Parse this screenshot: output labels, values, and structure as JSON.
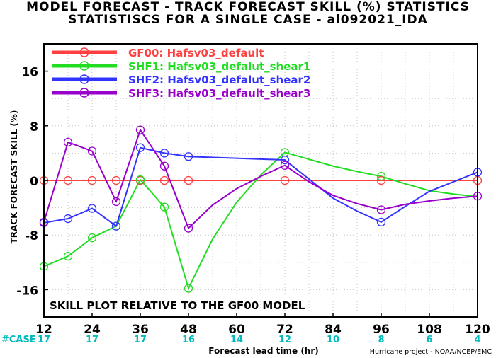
{
  "title_line1": "MODEL FORECAST - TRACK FORECAST SKILL (%) STATISTICS",
  "title_line2": "STATISTISCS FOR A SINGLE CASE - al092021_IDA",
  "annotation": "SKILL PLOT RELATIVE TO THE GF00 MODEL",
  "case_label": "#CASE",
  "credit": "Hurricane project - NOAA/NCEP/EMC",
  "colors": {
    "GF00": "#ff4040",
    "SHF1": "#22dd22",
    "SHF2": "#3333ff",
    "SHF3": "#9900cc",
    "case_counts": "#00bbbb",
    "zero_line": "#8b0000"
  },
  "chart_data": {
    "type": "line",
    "xlabel": "Forecast lead time (hr)",
    "ylabel": "TRACK FORECAST SKILL (%)",
    "xlim": [
      12,
      120
    ],
    "ylim": [
      -20,
      20
    ],
    "x_ticks": [
      12,
      24,
      36,
      48,
      60,
      72,
      84,
      96,
      108,
      120
    ],
    "y_ticks": [
      -16,
      -8,
      0,
      8,
      16
    ],
    "grid": true,
    "legend_position": "top-left",
    "case_counts": [
      {
        "x": 12,
        "n": "17"
      },
      {
        "x": 24,
        "n": "17"
      },
      {
        "x": 36,
        "n": "17"
      },
      {
        "x": 48,
        "n": "16"
      },
      {
        "x": 60,
        "n": "14"
      },
      {
        "x": 72,
        "n": "12"
      },
      {
        "x": 84,
        "n": "10"
      },
      {
        "x": 96,
        "n": "8"
      },
      {
        "x": 108,
        "n": "6"
      },
      {
        "x": 120,
        "n": "4"
      }
    ],
    "series": [
      {
        "key": "GF00",
        "name": "GF00: Hafsv03_default",
        "x": [
          12,
          18,
          24,
          30,
          36,
          42,
          48,
          72,
          96,
          120
        ],
        "y": [
          0,
          0,
          0,
          0,
          0,
          0,
          0,
          0,
          0,
          0
        ],
        "markers": [
          12,
          18,
          24,
          30,
          36,
          42,
          48,
          72,
          96,
          120
        ],
        "line_x": [
          12,
          120
        ],
        "line_y": [
          0,
          0
        ]
      },
      {
        "key": "SHF1",
        "name": "SHF1: Hafsv03_defalut_shear1",
        "x": [
          12,
          18,
          24,
          30,
          36,
          42,
          48,
          54,
          60,
          66,
          72,
          78,
          84,
          90,
          96,
          102,
          108,
          114,
          120
        ],
        "y": [
          -12.6,
          -11.1,
          -8.4,
          -6.7,
          0.1,
          -3.9,
          -15.8,
          -8.6,
          -3.2,
          0.8,
          4.1,
          3.1,
          2.1,
          1.3,
          0.6,
          -0.5,
          -1.5,
          -2.0,
          -2.4
        ],
        "markers": [
          12,
          18,
          24,
          30,
          36,
          42,
          48,
          72,
          96
        ]
      },
      {
        "key": "SHF2",
        "name": "SHF2: Hafsv03_defalut_shear2",
        "x": [
          12,
          18,
          24,
          30,
          36,
          42,
          48,
          72,
          78,
          84,
          90,
          96,
          102,
          108,
          114,
          120
        ],
        "y": [
          -6.2,
          -5.6,
          -4.1,
          -6.7,
          4.8,
          4.0,
          3.5,
          3.0,
          0.2,
          -2.6,
          -4.5,
          -6.1,
          -3.8,
          -1.6,
          -0.2,
          1.2
        ],
        "markers": [
          12,
          18,
          24,
          30,
          36,
          42,
          48,
          72,
          96,
          120
        ]
      },
      {
        "key": "SHF3",
        "name": "SHF3: Hafsv03_default_shear3",
        "x": [
          12,
          18,
          24,
          30,
          36,
          42,
          48,
          54,
          60,
          66,
          72,
          78,
          84,
          90,
          96,
          102,
          108,
          114,
          120
        ],
        "y": [
          -6.1,
          5.6,
          4.3,
          -3.1,
          7.4,
          2.1,
          -7.0,
          -3.6,
          -1.2,
          0.6,
          2.2,
          -0.2,
          -2.2,
          -3.4,
          -4.3,
          -3.5,
          -3.0,
          -2.6,
          -2.3
        ],
        "markers": [
          12,
          18,
          24,
          30,
          36,
          42,
          48,
          72,
          96,
          120
        ]
      }
    ]
  }
}
